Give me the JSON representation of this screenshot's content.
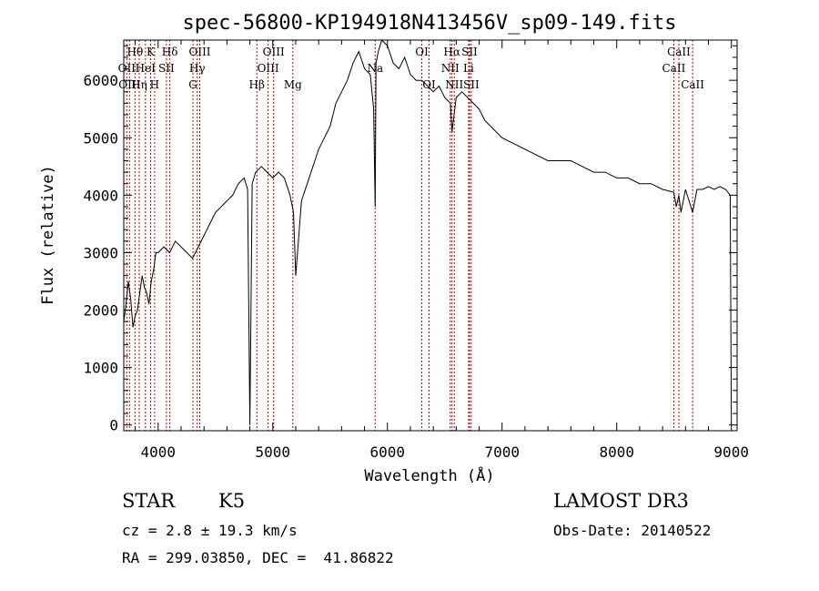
{
  "chart_data": {
    "type": "line",
    "title": "spec-56800-KP194918N413456V_sp09-149.fits",
    "xlabel": "Wavelength (Å)",
    "ylabel": "Flux (relative)",
    "xlim": [
      3700,
      9050
    ],
    "ylim": [
      -100,
      6700
    ],
    "xticks": [
      4000,
      5000,
      6000,
      7000,
      8000,
      9000
    ],
    "yticks": [
      0,
      1000,
      2000,
      3000,
      4000,
      5000,
      6000
    ],
    "grid": false,
    "line_color": "#000000",
    "marker_color": "#cc0000",
    "series": [
      {
        "x": [
          3700,
          3720,
          3740,
          3760,
          3780,
          3800,
          3820,
          3840,
          3860,
          3880,
          3900,
          3920,
          3940,
          3960,
          3980,
          4000,
          4050,
          4100,
          4150,
          4200,
          4250,
          4300,
          4350,
          4400,
          4450,
          4500,
          4550,
          4600,
          4650,
          4700,
          4750,
          4780,
          4800,
          4820,
          4850,
          4900,
          4950,
          5000,
          5050,
          5100,
          5150,
          5180,
          5200,
          5250,
          5300,
          5350,
          5400,
          5450,
          5500,
          5550,
          5600,
          5650,
          5700,
          5750,
          5800,
          5850,
          5880,
          5893,
          5900,
          5920,
          5950,
          6000,
          6050,
          6100,
          6150,
          6200,
          6250,
          6300,
          6350,
          6400,
          6450,
          6500,
          6550,
          6563,
          6600,
          6650,
          6700,
          6750,
          6800,
          6850,
          6900,
          7000,
          7100,
          7200,
          7300,
          7400,
          7500,
          7600,
          7700,
          7800,
          7900,
          8000,
          8100,
          8200,
          8300,
          8400,
          8498,
          8520,
          8542,
          8560,
          8600,
          8662,
          8700,
          8750,
          8800,
          8850,
          8900,
          8950,
          8990,
          9000
        ],
        "y": [
          1800,
          2100,
          2500,
          2200,
          1700,
          1900,
          2000,
          2300,
          2600,
          2400,
          2300,
          2100,
          2500,
          2700,
          3000,
          3000,
          3100,
          3000,
          3200,
          3100,
          3000,
          2900,
          3100,
          3300,
          3500,
          3700,
          3800,
          3900,
          4000,
          4200,
          4300,
          4100,
          0,
          4200,
          4400,
          4500,
          4400,
          4300,
          4400,
          4300,
          4000,
          3700,
          2600,
          3900,
          4200,
          4500,
          4800,
          5000,
          5200,
          5600,
          5800,
          6000,
          6300,
          6500,
          6200,
          6100,
          5500,
          3800,
          6300,
          6500,
          6700,
          6600,
          6300,
          6200,
          6400,
          6100,
          6000,
          6000,
          5900,
          5800,
          5900,
          5700,
          5600,
          5100,
          5700,
          5800,
          5700,
          5600,
          5500,
          5300,
          5200,
          5000,
          4900,
          4800,
          4700,
          4600,
          4600,
          4600,
          4500,
          4400,
          4400,
          4300,
          4300,
          4200,
          4200,
          4100,
          4050,
          3800,
          4000,
          3700,
          4100,
          3700,
          4100,
          4100,
          4150,
          4100,
          4150,
          4100,
          4000,
          0
        ]
      }
    ],
    "lines": [
      {
        "x": 3726,
        "label": "OII",
        "row": 1
      },
      {
        "x": 3750,
        "label": "OIII",
        "row": 2
      },
      {
        "x": 3798,
        "label": "Hθ",
        "row": 0
      },
      {
        "x": 3835,
        "label": "Hη",
        "row": 2
      },
      {
        "x": 3889,
        "label": "HeI",
        "row": 1
      },
      {
        "x": 3934,
        "label": "K",
        "row": 0
      },
      {
        "x": 3969,
        "label": "H",
        "row": 2
      },
      {
        "x": 4072,
        "label": "SII",
        "row": 1
      },
      {
        "x": 4102,
        "label": "Hδ",
        "row": 0
      },
      {
        "x": 4304,
        "label": "G",
        "row": 2
      },
      {
        "x": 4341,
        "label": "Hγ",
        "row": 1
      },
      {
        "x": 4363,
        "label": "OIII",
        "row": 0
      },
      {
        "x": 4861,
        "label": "Hβ",
        "row": 2
      },
      {
        "x": 4959,
        "label": "OIII",
        "row": 1
      },
      {
        "x": 5007,
        "label": "OIII",
        "row": 0
      },
      {
        "x": 5175,
        "label": "Mg",
        "row": 2
      },
      {
        "x": 5893,
        "label": "Na",
        "row": 1
      },
      {
        "x": 6300,
        "label": "OI",
        "row": 0
      },
      {
        "x": 6363,
        "label": "OI",
        "row": 2
      },
      {
        "x": 6548,
        "label": "NII",
        "row": 1
      },
      {
        "x": 6563,
        "label": "Hα",
        "row": 0
      },
      {
        "x": 6583,
        "label": "NII",
        "row": 2
      },
      {
        "x": 6708,
        "label": "Li",
        "row": 1
      },
      {
        "x": 6716,
        "label": "SII",
        "row": 0
      },
      {
        "x": 6731,
        "label": "SII",
        "row": 2
      },
      {
        "x": 8498,
        "label": "CaII",
        "row": 1
      },
      {
        "x": 8542,
        "label": "CaII",
        "row": 0
      },
      {
        "x": 8662,
        "label": "CaII",
        "row": 2
      }
    ]
  },
  "info": {
    "class_label": "STAR",
    "subclass": "K5",
    "survey": "LAMOST DR3",
    "cz": "cz = 2.8 ± 19.3 km/s",
    "obs_date": "Obs-Date: 20140522",
    "coords": "RA = 299.03850, DEC =  41.86822"
  }
}
